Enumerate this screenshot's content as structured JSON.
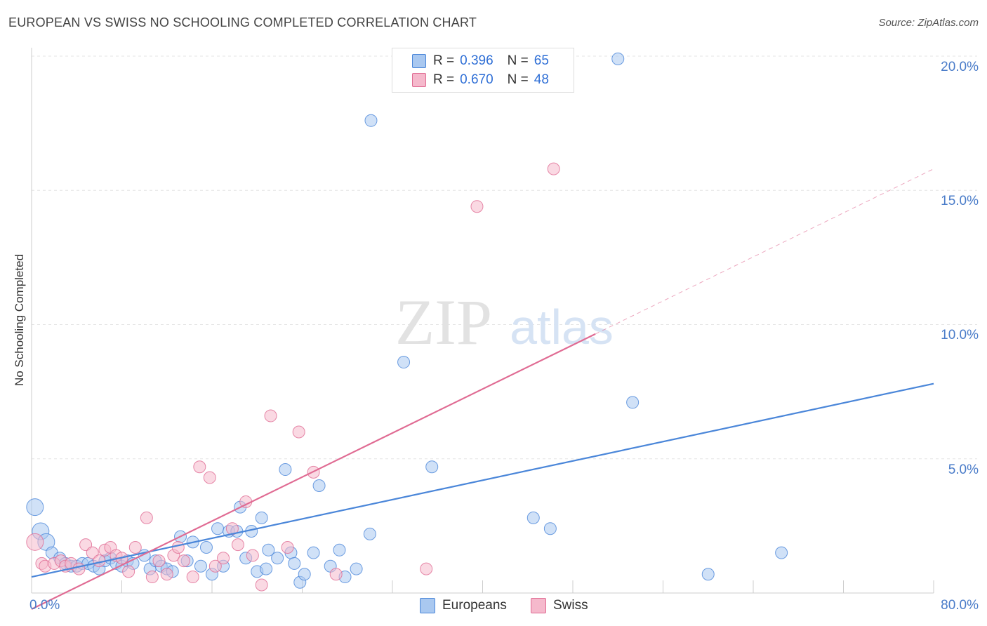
{
  "header": {
    "title": "EUROPEAN VS SWISS NO SCHOOLING COMPLETED CORRELATION CHART",
    "source": "Source: ZipAtlas.com"
  },
  "watermark": {
    "zip": "ZIP",
    "atlas": "atlas"
  },
  "stats": [
    {
      "r_label": "R =",
      "r_value": "0.396",
      "n_label": "N =",
      "n_value": "65",
      "color": "#a9c8f0"
    },
    {
      "r_label": "R =",
      "r_value": "0.670",
      "n_label": "N =",
      "n_value": "48",
      "color": "#f5b9cc"
    }
  ],
  "legend": [
    {
      "label": "Europeans",
      "color": "#a9c8f0"
    },
    {
      "label": "Swiss",
      "color": "#f5b9cc"
    }
  ],
  "chart_data": {
    "type": "scatter",
    "title": "EUROPEAN VS SWISS NO SCHOOLING COMPLETED CORRELATION CHART",
    "xlabel": "",
    "ylabel": "No Schooling Completed",
    "xlim": [
      0,
      80
    ],
    "ylim": [
      0,
      20
    ],
    "x_tick_labels": [
      "0.0%",
      "80.0%"
    ],
    "y_ticks": [
      5,
      10,
      15,
      20
    ],
    "y_tick_labels": [
      "5.0%",
      "10.0%",
      "15.0%",
      "20.0%"
    ],
    "series": [
      {
        "name": "Europeans",
        "color": "#4a86d9",
        "fill": "#a9c8f0",
        "trend": {
          "x0": 0,
          "y0": 0.6,
          "x1": 80,
          "y1": 7.8
        },
        "points": [
          [
            0.3,
            3.2
          ],
          [
            0.8,
            2.3
          ],
          [
            1.3,
            1.9
          ],
          [
            1.8,
            1.5
          ],
          [
            2.5,
            1.3
          ],
          [
            3.0,
            1.1
          ],
          [
            3.5,
            1.0
          ],
          [
            4.0,
            1.0
          ],
          [
            4.5,
            1.1
          ],
          [
            5.0,
            1.1
          ],
          [
            5.5,
            1.0
          ],
          [
            6.0,
            0.9
          ],
          [
            6.5,
            1.2
          ],
          [
            7.0,
            1.3
          ],
          [
            7.5,
            1.1
          ],
          [
            8.0,
            1.0
          ],
          [
            8.5,
            1.2
          ],
          [
            9.0,
            1.1
          ],
          [
            10.0,
            1.4
          ],
          [
            10.5,
            0.9
          ],
          [
            11.0,
            1.2
          ],
          [
            11.5,
            1.0
          ],
          [
            12.0,
            0.9
          ],
          [
            12.5,
            0.8
          ],
          [
            13.2,
            2.1
          ],
          [
            13.8,
            1.2
          ],
          [
            14.3,
            1.9
          ],
          [
            15.0,
            1.0
          ],
          [
            15.5,
            1.7
          ],
          [
            16.0,
            0.7
          ],
          [
            16.5,
            2.4
          ],
          [
            17.0,
            1.0
          ],
          [
            17.5,
            2.3
          ],
          [
            18.2,
            2.3
          ],
          [
            18.5,
            3.2
          ],
          [
            19.0,
            1.3
          ],
          [
            19.5,
            2.3
          ],
          [
            20.0,
            0.8
          ],
          [
            20.4,
            2.8
          ],
          [
            20.8,
            0.9
          ],
          [
            21.0,
            1.6
          ],
          [
            21.8,
            1.3
          ],
          [
            22.5,
            4.6
          ],
          [
            23.0,
            1.5
          ],
          [
            23.3,
            1.1
          ],
          [
            23.8,
            0.4
          ],
          [
            24.2,
            0.7
          ],
          [
            25.0,
            1.5
          ],
          [
            25.5,
            4.0
          ],
          [
            26.5,
            1.0
          ],
          [
            27.3,
            1.6
          ],
          [
            27.8,
            0.6
          ],
          [
            28.8,
            0.9
          ],
          [
            30.0,
            2.2
          ],
          [
            30.1,
            17.6
          ],
          [
            33.0,
            8.6
          ],
          [
            35.5,
            4.7
          ],
          [
            44.5,
            2.8
          ],
          [
            46.0,
            2.4
          ],
          [
            52.0,
            19.9
          ],
          [
            53.3,
            7.1
          ],
          [
            60.0,
            0.7
          ],
          [
            66.5,
            1.5
          ]
        ],
        "sizes": [
          "l",
          "l",
          "l",
          "m",
          "m",
          "m",
          "m",
          "m",
          "m",
          "m",
          "m",
          "m",
          "m",
          "m",
          "m",
          "m",
          "m",
          "m",
          "m",
          "m",
          "m",
          "m",
          "m",
          "m",
          "m",
          "m",
          "m",
          "m",
          "m",
          "m",
          "m",
          "m",
          "m",
          "m",
          "m",
          "m",
          "m",
          "m",
          "m",
          "m",
          "m",
          "m",
          "m",
          "m",
          "m",
          "m",
          "m",
          "m",
          "m",
          "m",
          "m",
          "m",
          "m",
          "m",
          "m",
          "m",
          "m",
          "m",
          "m",
          "m",
          "m",
          "m",
          "m"
        ]
      },
      {
        "name": "Swiss",
        "color": "#e06b93",
        "fill": "#f5b9cc",
        "trend": {
          "x0": 0,
          "y0": -0.6,
          "x1": 80,
          "y1": 15.8,
          "solid_until_x": 50
        },
        "points": [
          [
            0.3,
            1.9
          ],
          [
            0.9,
            1.1
          ],
          [
            1.2,
            1.0
          ],
          [
            2.0,
            1.1
          ],
          [
            2.6,
            1.2
          ],
          [
            3.0,
            1.0
          ],
          [
            3.5,
            1.1
          ],
          [
            4.2,
            0.9
          ],
          [
            4.8,
            1.8
          ],
          [
            5.4,
            1.5
          ],
          [
            6.0,
            1.2
          ],
          [
            6.5,
            1.6
          ],
          [
            7.0,
            1.7
          ],
          [
            7.5,
            1.4
          ],
          [
            8.0,
            1.3
          ],
          [
            8.6,
            0.8
          ],
          [
            9.2,
            1.7
          ],
          [
            10.2,
            2.8
          ],
          [
            10.7,
            0.6
          ],
          [
            11.3,
            1.2
          ],
          [
            12.0,
            0.7
          ],
          [
            12.6,
            1.4
          ],
          [
            13.0,
            1.7
          ],
          [
            13.5,
            1.2
          ],
          [
            14.3,
            0.6
          ],
          [
            14.9,
            4.7
          ],
          [
            15.8,
            4.3
          ],
          [
            16.3,
            1.0
          ],
          [
            17.0,
            1.3
          ],
          [
            17.8,
            2.4
          ],
          [
            18.3,
            1.8
          ],
          [
            19.0,
            3.4
          ],
          [
            19.6,
            1.4
          ],
          [
            20.4,
            0.3
          ],
          [
            21.2,
            6.6
          ],
          [
            22.7,
            1.7
          ],
          [
            23.7,
            6.0
          ],
          [
            25.0,
            4.5
          ],
          [
            27.0,
            0.7
          ],
          [
            35.0,
            0.9
          ],
          [
            39.5,
            14.4
          ],
          [
            46.3,
            15.8
          ]
        ],
        "sizes": [
          "l",
          "m",
          "m",
          "m",
          "m",
          "m",
          "m",
          "m",
          "m",
          "m",
          "m",
          "m",
          "m",
          "m",
          "m",
          "m",
          "m",
          "m",
          "m",
          "m",
          "m",
          "m",
          "m",
          "m",
          "m",
          "m",
          "m",
          "m",
          "m",
          "m",
          "m",
          "m",
          "m",
          "m",
          "m",
          "m",
          "m",
          "m",
          "m",
          "m",
          "m",
          "m"
        ]
      }
    ]
  }
}
